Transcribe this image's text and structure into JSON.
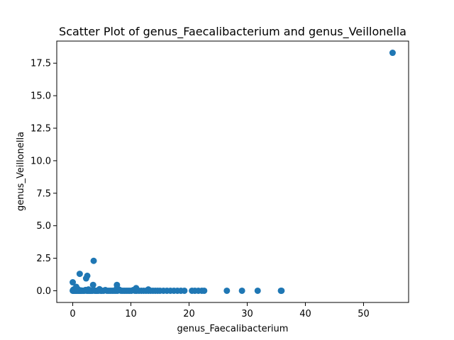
{
  "chart_data": {
    "type": "scatter",
    "title": "Scatter Plot of genus_Faecalibacterium and genus_Veillonella",
    "xlabel": "genus_Faecalibacterium",
    "ylabel": "genus_Veillonella",
    "xlim": [
      -2.75,
      57.75
    ],
    "ylim": [
      -0.9,
      19.2
    ],
    "xticks": [
      0,
      10,
      20,
      30,
      40,
      50
    ],
    "xtick_labels": [
      "0",
      "10",
      "20",
      "30",
      "40",
      "50"
    ],
    "yticks": [
      0.0,
      2.5,
      5.0,
      7.5,
      10.0,
      12.5,
      15.0,
      17.5
    ],
    "ytick_labels": [
      "0.0",
      "2.5",
      "5.0",
      "7.5",
      "10.0",
      "12.5",
      "15.0",
      "17.5"
    ],
    "grid": false,
    "marker_color": "#1f77b4",
    "series": [
      {
        "x": [
          0.0,
          0.05,
          0.1,
          0.15,
          0.2,
          0.3,
          0.35,
          0.4,
          0.5,
          0.6,
          0.7,
          0.8,
          0.9,
          1.0,
          1.1,
          1.2,
          1.3,
          1.4,
          1.5,
          1.6,
          1.8,
          2.0,
          2.2,
          2.4,
          2.6,
          2.8,
          3.0,
          3.2,
          3.4,
          3.6,
          3.8,
          4.0,
          4.2,
          4.4,
          4.6,
          4.8,
          5.0,
          5.3,
          5.6,
          5.9,
          6.2,
          6.5,
          6.8,
          7.1,
          7.4,
          7.7,
          8.0,
          8.3,
          8.6,
          8.9,
          9.2,
          9.5,
          9.8,
          10.1,
          10.4,
          10.7,
          11.0,
          11.4,
          11.8,
          12.2,
          12.6,
          13.0,
          13.4,
          13.8,
          14.2,
          14.6,
          15.0,
          15.6,
          16.2,
          16.8,
          17.4,
          18.0,
          18.6,
          19.2,
          20.5,
          21.0,
          21.6,
          22.2,
          22.6,
          26.5,
          29.1,
          31.8,
          35.8,
          35.9,
          0.0,
          0.6,
          0.8,
          1.2,
          2.3,
          2.5,
          2.7,
          3.5,
          3.6,
          7.6,
          7.6,
          10.9,
          13.0,
          55.0
        ],
        "y": [
          0.0,
          0.05,
          0.0,
          0.1,
          0.0,
          0.02,
          0.0,
          0.08,
          0.0,
          0.0,
          0.0,
          0.03,
          0.0,
          0.0,
          0.05,
          0.0,
          0.0,
          0.0,
          0.02,
          0.0,
          0.0,
          0.0,
          0.06,
          0.0,
          0.0,
          0.0,
          0.0,
          0.0,
          0.0,
          0.04,
          0.0,
          0.0,
          0.0,
          0.0,
          0.12,
          0.0,
          0.0,
          0.0,
          0.05,
          0.0,
          0.0,
          0.0,
          0.0,
          0.0,
          0.0,
          0.0,
          0.08,
          0.0,
          0.0,
          0.0,
          0.0,
          0.0,
          0.0,
          0.0,
          0.05,
          0.0,
          0.0,
          0.0,
          0.0,
          0.0,
          0.0,
          0.0,
          0.0,
          0.0,
          0.0,
          0.0,
          0.0,
          0.0,
          0.0,
          0.0,
          0.0,
          0.0,
          0.0,
          0.0,
          0.0,
          0.0,
          0.0,
          0.0,
          0.0,
          0.0,
          0.0,
          0.0,
          0.0,
          0.0,
          0.65,
          0.3,
          0.15,
          1.3,
          0.95,
          1.15,
          0.1,
          0.45,
          2.3,
          0.45,
          0.2,
          0.2,
          0.1,
          18.3
        ]
      }
    ]
  }
}
